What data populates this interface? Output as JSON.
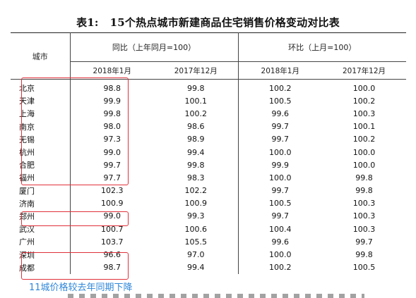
{
  "title": {
    "label": "表1:",
    "text": "15个热点城市新建商品住宅销售价格变动对比表"
  },
  "headers": {
    "city": "城市",
    "group_yoy": "同比（上年同月=100）",
    "group_mom": "环比（上月=100）",
    "periods": [
      "2018年1月",
      "2017年12月",
      "2018年1月",
      "2017年12月"
    ]
  },
  "rows": [
    {
      "city": "北京",
      "values": [
        "98.8",
        "99.8",
        "100.2",
        "100.0"
      ]
    },
    {
      "city": "天津",
      "values": [
        "99.9",
        "100.1",
        "100.5",
        "100.2"
      ]
    },
    {
      "city": "上海",
      "values": [
        "99.8",
        "100.2",
        "99.6",
        "100.3"
      ]
    },
    {
      "city": "南京",
      "values": [
        "98.0",
        "98.6",
        "99.7",
        "100.1"
      ]
    },
    {
      "city": "无锡",
      "values": [
        "97.3",
        "98.9",
        "99.7",
        "100.2"
      ]
    },
    {
      "city": "杭州",
      "values": [
        "99.0",
        "99.4",
        "100.0",
        "100.0"
      ]
    },
    {
      "city": "合肥",
      "values": [
        "99.7",
        "99.8",
        "99.9",
        "100.0"
      ]
    },
    {
      "city": "福州",
      "values": [
        "97.7",
        "98.3",
        "100.0",
        "99.8"
      ]
    },
    {
      "city": "厦门",
      "values": [
        "102.3",
        "102.2",
        "99.7",
        "99.8"
      ]
    },
    {
      "city": "济南",
      "values": [
        "100.9",
        "100.9",
        "100.5",
        "100.3"
      ]
    },
    {
      "city": "郑州",
      "values": [
        "99.0",
        "99.3",
        "99.7",
        "100.3"
      ]
    },
    {
      "city": "武汉",
      "values": [
        "100.7",
        "100.6",
        "100.4",
        "100.3"
      ]
    },
    {
      "city": "广州",
      "values": [
        "103.7",
        "105.5",
        "99.6",
        "99.7"
      ]
    },
    {
      "city": "深圳",
      "values": [
        "96.6",
        "97.0",
        "100.0",
        "99.8"
      ]
    },
    {
      "city": "成都",
      "values": [
        "98.7",
        "99.4",
        "100.2",
        "100.5"
      ]
    }
  ],
  "annotation": "11城价格较去年同期下降",
  "colors": {
    "highlight_border": "#e0303a",
    "annotation_text": "#2f87d8"
  }
}
